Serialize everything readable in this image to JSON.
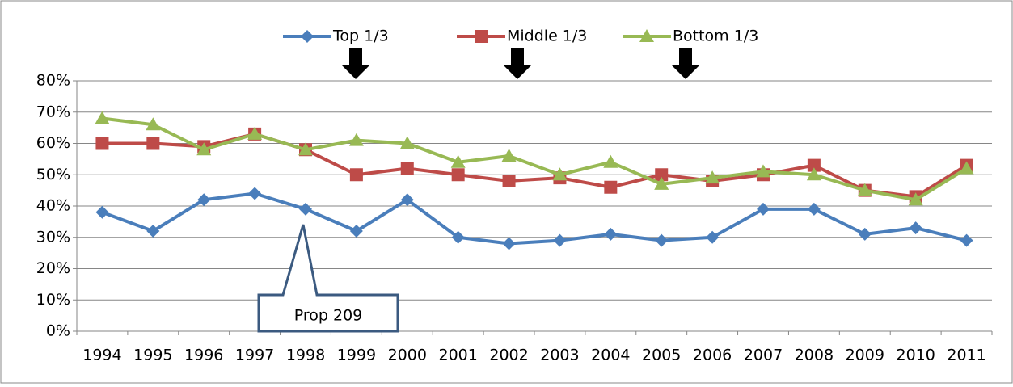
{
  "chart_data": {
    "type": "line",
    "categories": [
      "1994",
      "1995",
      "1996",
      "1997",
      "1998",
      "1999",
      "2000",
      "2001",
      "2002",
      "2003",
      "2004",
      "2005",
      "2006",
      "2007",
      "2008",
      "2009",
      "2010",
      "2011"
    ],
    "series": [
      {
        "name": "Top 1/3",
        "color": "#4a7ebb",
        "marker": "diamond",
        "values": [
          38,
          32,
          42,
          44,
          39,
          32,
          42,
          30,
          28,
          29,
          31,
          29,
          30,
          39,
          39,
          31,
          33,
          29
        ]
      },
      {
        "name": "Middle 1/3",
        "color": "#be4b48",
        "marker": "square",
        "values": [
          60,
          60,
          59,
          63,
          58,
          50,
          52,
          50,
          48,
          49,
          46,
          50,
          48,
          50,
          53,
          45,
          43,
          53
        ]
      },
      {
        "name": "Bottom 1/3",
        "color": "#98b954",
        "marker": "triangle",
        "values": [
          68,
          66,
          58,
          63,
          58,
          61,
          60,
          54,
          56,
          50,
          54,
          47,
          49,
          51,
          50,
          45,
          42,
          52
        ]
      }
    ],
    "ylim": [
      0,
      80
    ],
    "yticks": [
      {
        "value": 0,
        "label": "0%"
      },
      {
        "value": 10,
        "label": "10%"
      },
      {
        "value": 20,
        "label": "20%"
      },
      {
        "value": 30,
        "label": "30%"
      },
      {
        "value": 40,
        "label": "40%"
      },
      {
        "value": 50,
        "label": "50%"
      },
      {
        "value": 60,
        "label": "60%"
      },
      {
        "value": 70,
        "label": "70%"
      },
      {
        "value": 80,
        "label": "80%"
      }
    ],
    "grid": true,
    "legend": "top",
    "annotations": [
      "Prop 209"
    ]
  }
}
